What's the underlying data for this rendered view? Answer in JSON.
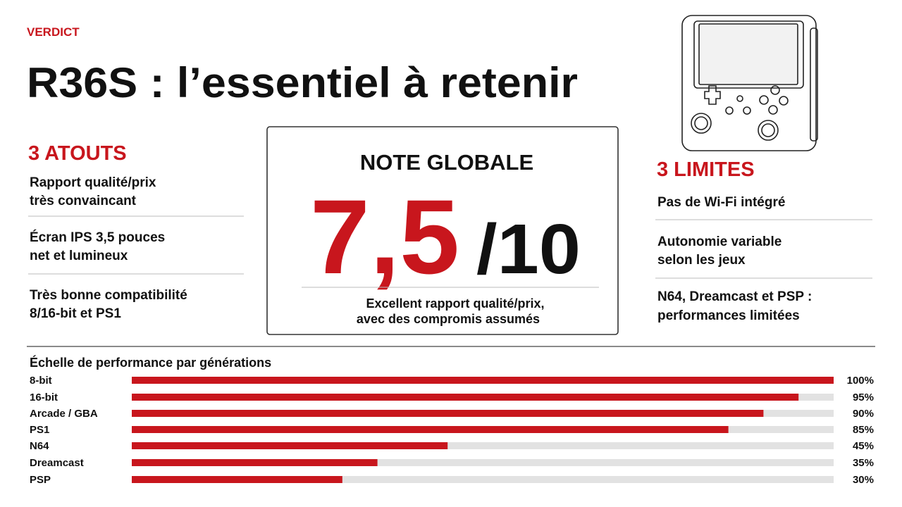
{
  "header": {
    "kicker": "VERDICT",
    "title": "R36S : l’essentiel à retenir"
  },
  "atouts": {
    "title": "3 ATOUTS",
    "items": [
      [
        "Rapport qualité/prix",
        "très convaincant"
      ],
      [
        "Écran IPS 3,5 pouces",
        "net et lumineux"
      ],
      [
        "Très bonne compatibilité",
        "8/16-bit et PS1"
      ]
    ]
  },
  "note": {
    "title": "NOTE GLOBALE",
    "score": "7,5",
    "scale": "/10",
    "caption": [
      "Excellent rapport qualité/prix,",
      "avec des compromis assumés"
    ]
  },
  "limites": {
    "title": "3 LIMITES",
    "items": [
      [
        "Pas de Wi-Fi intégré"
      ],
      [
        "Autonomie variable",
        "selon les jeux"
      ],
      [
        "N64, Dreamcast et PSP :",
        "performances limitées"
      ]
    ]
  },
  "chart_data": {
    "type": "bar",
    "title": "Échelle de performance par générations",
    "categories": [
      "8-bit",
      "16-bit",
      "Arcade / GBA",
      "PS1",
      "N64",
      "Dreamcast",
      "PSP"
    ],
    "values": [
      100,
      95,
      90,
      85,
      45,
      35,
      30
    ],
    "value_labels": [
      "100%",
      "95%",
      "90%",
      "85%",
      "45%",
      "35%",
      "30%"
    ],
    "xlim": [
      0,
      100
    ],
    "color": "#c8161d"
  }
}
